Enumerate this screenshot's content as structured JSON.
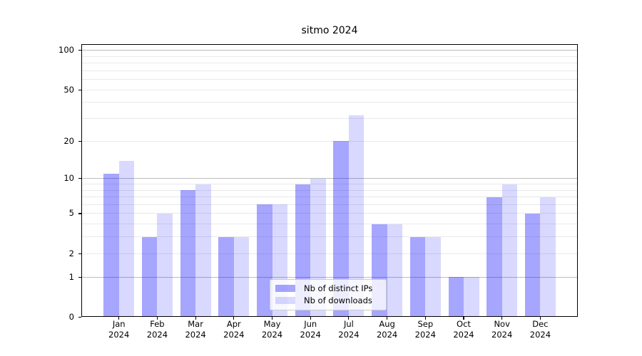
{
  "title": "sitmo 2024",
  "legend": {
    "items": [
      {
        "label": "Nb of distinct IPs"
      },
      {
        "label": "Nb of downloads"
      }
    ]
  },
  "chart_data": {
    "type": "bar",
    "title": "sitmo 2024",
    "categories": [
      "Jan",
      "Feb",
      "Mar",
      "Apr",
      "May",
      "Jun",
      "Jul",
      "Aug",
      "Sep",
      "Oct",
      "Nov",
      "Dec"
    ],
    "category_year": "2024",
    "series": [
      {
        "name": "Nb of distinct IPs",
        "color": "rgba(0,0,255,0.35)",
        "values": [
          11,
          3,
          8,
          3,
          6,
          9,
          20,
          4,
          3,
          1,
          7,
          5
        ]
      },
      {
        "name": "Nb of downloads",
        "color": "rgba(0,0,255,0.15)",
        "values": [
          14,
          5,
          9,
          3,
          6,
          10,
          32,
          4,
          3,
          1,
          9,
          7
        ]
      }
    ],
    "yscale": "symlog (y proportional to log10(1+value))",
    "ylim": [
      0,
      110
    ],
    "yticks": [
      0,
      1,
      2,
      5,
      10,
      20,
      50,
      100
    ],
    "gridlines_major": [
      1,
      10,
      100
    ],
    "gridlines_minor": [
      2,
      3,
      4,
      5,
      6,
      7,
      8,
      9,
      20,
      30,
      40,
      50,
      60,
      70,
      80,
      90
    ],
    "grid": true,
    "legend_position": "lower center"
  },
  "colors": {
    "bar_distinct_ips": "rgba(0,0,255,0.35)",
    "bar_downloads": "rgba(0,0,255,0.15)",
    "grid_major": "#bcbcbc",
    "grid_minor": "#e9e9e9",
    "axis": "#000000",
    "legend_border": "#cccccc",
    "legend_bg": "rgba(255,255,255,0.8)"
  }
}
